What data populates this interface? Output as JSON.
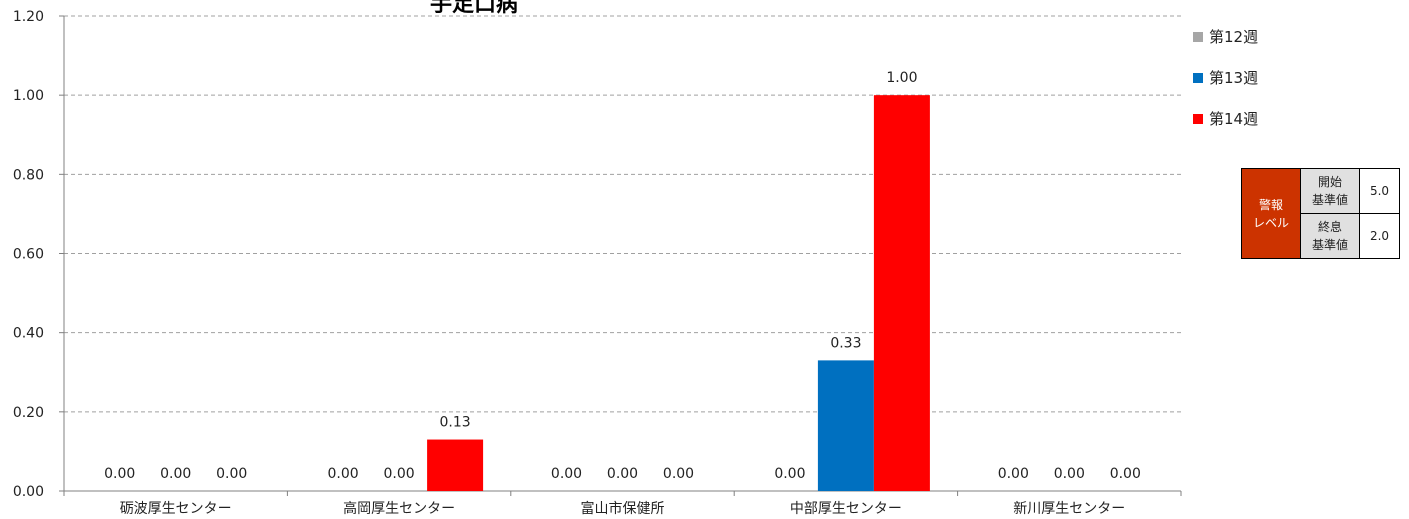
{
  "chart_data": {
    "type": "bar",
    "title": "手足口病",
    "categories": [
      "砺波厚生センター",
      "高岡厚生センター",
      "富山市保健所",
      "中部厚生センター",
      "新川厚生センター"
    ],
    "series": [
      {
        "name": "第12週",
        "color": "#a6a6a6",
        "values": [
          0.0,
          0.0,
          0.0,
          0.0,
          0.0
        ]
      },
      {
        "name": "第13週",
        "color": "#0070c0",
        "values": [
          0.0,
          0.0,
          0.0,
          0.33,
          0.0
        ]
      },
      {
        "name": "第14週",
        "color": "#ff0000",
        "values": [
          0.0,
          0.13,
          0.0,
          1.0,
          0.0
        ]
      }
    ],
    "data_labels": [
      [
        "0.00",
        "0.00",
        "0.00"
      ],
      [
        "0.00",
        "0.00",
        "0.13"
      ],
      [
        "0.00",
        "0.00",
        "0.00"
      ],
      [
        "0.00",
        "0.33",
        "1.00"
      ],
      [
        "0.00",
        "0.00",
        "0.00"
      ]
    ],
    "y_ticks": [
      "0.00",
      "0.20",
      "0.40",
      "0.60",
      "0.80",
      "1.00",
      "1.20"
    ],
    "ylim": [
      0,
      1.2
    ],
    "grid": true,
    "legend_position": "right"
  },
  "alarm_table": {
    "level_label": "警報\nレベル",
    "start_label": "開始\n基準値",
    "start_value": "5.0",
    "end_label": "終息\n基準値",
    "end_value": "2.0"
  }
}
